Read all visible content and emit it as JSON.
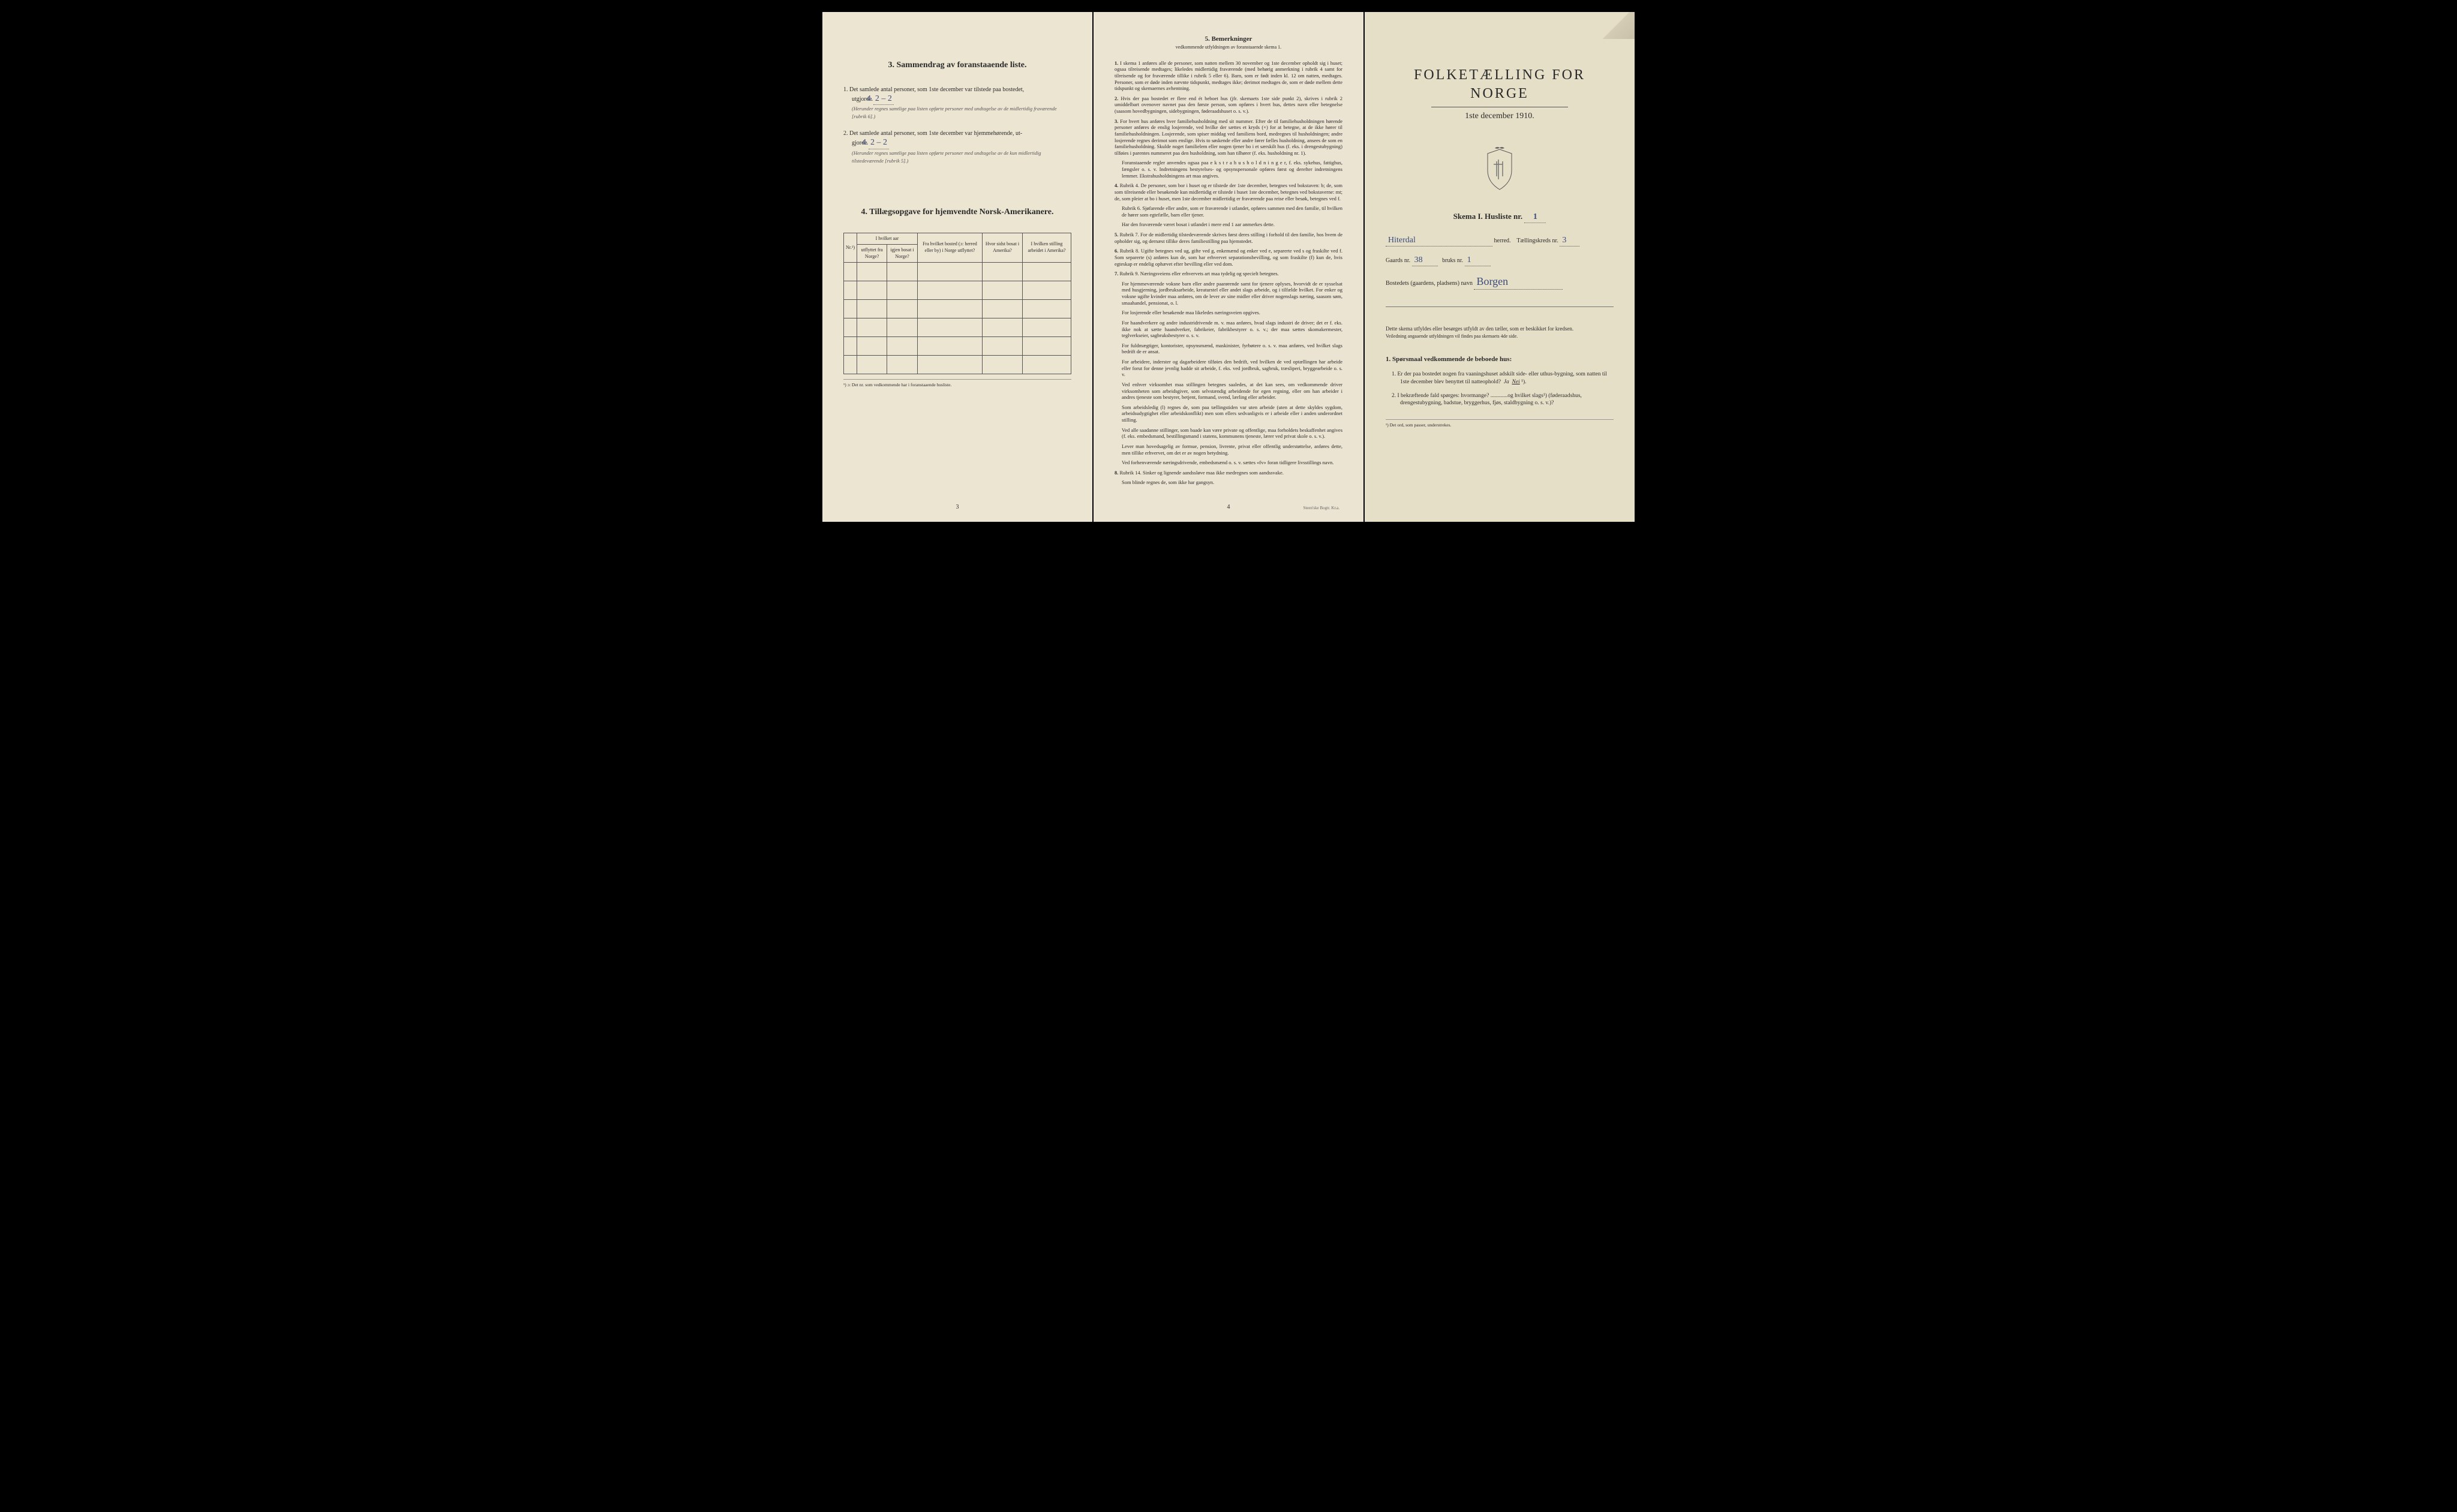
{
  "colors": {
    "page_bg_left": "#ece5d2",
    "page_bg_middle": "#ebe4d2",
    "page_bg_right": "#e6dfc8",
    "text": "#2a2a2a",
    "handwriting": "#3a4a7a",
    "border": "#555555",
    "background": "#000000"
  },
  "page3": {
    "section3_title": "3.   Sammendrag av foranstaaende liste.",
    "item1_lead": "1.  Det samlede antal personer, som 1ste december var tilstede paa bostedet,",
    "item1_utgjorde": "utgjorde",
    "item1_value": "4.     2 – 2",
    "item1_note": "(Herunder regnes samtlige paa listen opførte personer med undtagelse av de midlertidig fraværende [rubrik 6].)",
    "item2_lead": "2.  Det samlede antal personer, som 1ste december var hjemmehørende, ut-",
    "item2_gjorde": "gjorde",
    "item2_value": "4.     2 – 2",
    "item2_note": "(Herunder regnes samtlige paa listen opførte personer med undtagelse av de kun midlertidig tilstedeværende [rubrik 5].)",
    "section4_title": "4.   Tillægsopgave for hjemvendte Norsk-Amerikanere.",
    "table": {
      "col_nr": "Nr.¹)",
      "col_aar_header": "I hvilket aar",
      "col_utflyttet": "utflyttet fra Norge?",
      "col_igjen": "igjen bosat i Norge?",
      "col_fra": "Fra hvilket bosted (ɔ: herred eller by) i Norge utflyttet?",
      "col_hvor": "Hvor sidst bosat i Amerika?",
      "col_stilling": "I hvilken stilling arbeidet i Amerika?",
      "rows": 6
    },
    "footnote": "¹) ɔ: Det nr. som vedkommende har i foranstaaende husliste.",
    "page_num": "3"
  },
  "page4": {
    "title": "5.   Bemerkninger",
    "subtitle": "vedkommende utfyldningen av foranstaaende skema 1.",
    "items": [
      {
        "n": "1.",
        "t": "I skema 1 anføres alle de personer, som natten mellem 30 november og 1ste december opholdt sig i huset; ogsaa tilreisende medtages; likeledes midlertidig fraværende (med behørig anmerkning i rubrik 4 samt for tilreisende og for fraværende tillike i rubrik 5 eller 6). Barn, som er født inden kl. 12 om natten, medtages. Personer, som er døde inden nævnte tidspunkt, medtages ikke; derimot medtages de, som er døde mellem dette tidspunkt og skemaernes avhentning."
      },
      {
        "n": "2.",
        "t": "Hvis der paa bostedet er flere end ét beboet hus (jfr. skemaets 1ste side punkt 2), skrives i rubrik 2 umiddelbart ovenover navnet paa den første person, som opføres i hvert hus, dettes navn eller betegnelse (saasom hovedbygningen, sidebygningen, føderaadshuset o. s. v.)."
      },
      {
        "n": "3.",
        "t": "For hvert hus anføres hver familiehusholdning med sit nummer. Efter de til familiehusholdningen hørende personer anføres de enslig losjerende, ved hvilke der sættes et kryds (×) for at betegne, at de ikke hører til familiehusholdningen. Losjerende, som spiser middag ved familiens bord, medregnes til husholdningen; andre losjerende regnes derimot som enslige. Hvis to søskende eller andre fører fælles husholdning, ansees de som en familiehusholdning. Skulde noget familielem eller nogen tjener bo i et særskilt hus (f. eks. i drengestubygning) tilføies i parentes nummeret paa den husholdning, som han tilhører (f. eks. husholdning nr. 1)."
      },
      {
        "n": "",
        "t": "Foranstaaende regler anvendes ogsaa paa e k s t r a h u s h o l d n i n g e r, f. eks. sykehus, fattighus, fængsler o. s. v.  Indretningens bestyrelses- og opsynspersonale opføres først og derefter indretningens lemmer. Ekstrahusholdningens art maa angives."
      },
      {
        "n": "4.",
        "t": "Rubrik 4.  De personer, som bor i huset og er tilstede der 1ste december, betegnes ved bokstaven: b; de, som som tilreisende eller besøkende kun midlertidig er tilstede i huset 1ste december, betegnes ved bokstaverne: mt; de, som pleier at bo i huset, men 1ste december midlertidig er fraværende paa reise eller besøk, betegnes ved f."
      },
      {
        "n": "",
        "t": "Rubrik 6.  Sjøfarende eller andre, som er fraværende i utlandet, opføres sammen med den familie, til hvilken de hører som egtefælle, barn eller tjener."
      },
      {
        "n": "",
        "t": "Har den fraværende været bosat i utlandet i mere end 1 aar anmerkes dette."
      },
      {
        "n": "5.",
        "t": "Rubrik 7.  For de midlertidig tilstedeværende skrives først deres stilling i forhold til den familie, hos hvem de opholder sig, og dernæst tillike deres familiestilling paa hjemstedet."
      },
      {
        "n": "6.",
        "t": "Rubrik 8.  Ugifte betegnes ved ug, gifte ved g, enkemænd og enker ved e, separerte ved s og fraskilte ved f.  Som separerte (s) anføres kun de, som har erhvervet separationsbevilling, og som fraskilte (f) kun de, hvis egteskap er endelig ophævet efter bevilling eller ved dom."
      },
      {
        "n": "7.",
        "t": "Rubrik 9.  Næringsveiens eller erhvervets art maa tydelig og specielt betegnes."
      },
      {
        "n": "",
        "t": "For hjemmeværende voksne barn eller andre paarørende samt for tjenere oplyses, hvorvidt de er sysselsat med husgjerning, jordbruksarbeide, kreaturstel eller andet slags arbeide, og i tilfælde hvilket. For enker og voksne ugifte kvinder maa anføres, om de lever av sine midler eller driver nogenslags næring, saasom søm, smaahandel, pensionat, o. l."
      },
      {
        "n": "",
        "t": "For losjerende eller besøkende maa likeledes næringsveien opgives."
      },
      {
        "n": "",
        "t": "For haandverkere og andre industridrivende m. v. maa anføres, hvad slags industri de driver; det er f. eks. ikke nok at sætte haandverker, fabrikeier, fabrikbestyrer o. s. v.; der maa sættes skomakermester, teglverkseier, sagbruksbestyrer o. s. v."
      },
      {
        "n": "",
        "t": "For fuldmægtiger, kontorister, opsynsmænd, maskinister, fyrbøtere o. s. v. maa anføres, ved hvilket slags bedrift de er ansat."
      },
      {
        "n": "",
        "t": "For arbeidere, inderster og dagarbeidere tilføies den bedrift, ved hvilken de ved optællingen har arbeide eller forut for denne jevnlig hadde sit arbeide, f. eks. ved jordbruk, sagbruk, træsliperi, bryggearbeide o. s. v."
      },
      {
        "n": "",
        "t": "Ved enhver virksomhet maa stillingen betegnes saaledes, at det kan sees, om vedkommende driver virksomheten som arbeidsgiver, som selvstændig arbeidende for egen regning, eller om han arbeider i andres tjeneste som bestyrer, betjent, formand, svend, lærling eller arbeider."
      },
      {
        "n": "",
        "t": "Som arbeidsledig (l) regnes de, som paa tællingstiden var uten arbeide (uten at dette skyldes sygdom, arbeidsudygtighet eller arbeidskonflikt) men som ellers sedvanligvis er i arbeide eller i anden underordnet stilling."
      },
      {
        "n": "",
        "t": "Ved alle saadanne stillinger, som baade kan være private og offentlige, maa forholdets beskaffenhet angives (f. eks. embedsmand, bestillingsmand i statens, kommunens tjeneste, lærer ved privat skole o. s. v.)."
      },
      {
        "n": "",
        "t": "Lever man hovedsagelig av formue, pension, livrente, privat eller offentlig understøttelse, anføres dette, men tillike erhvervet, om det er av nogen betydning."
      },
      {
        "n": "",
        "t": "Ved forhenværende næringsdrivende, embedsmænd o. s. v. sættes «fv» foran tidligere livsstillings navn."
      },
      {
        "n": "8.",
        "t": "Rubrik 14.  Sinker og lignende aandssløve maa ikke medregnes som aandssvake."
      },
      {
        "n": "",
        "t": "Som blinde regnes de, som ikke har gangsyn."
      }
    ],
    "page_num": "4",
    "printer": "Steen'ske Bogtr.  Kr.a."
  },
  "page1": {
    "main_title": "FOLKETÆLLING FOR NORGE",
    "date": "1ste december 1910.",
    "skema_label": "Skema I.   Husliste nr.",
    "husliste_nr": "1",
    "herred_value": "Hiterdal",
    "herred_label": "herred.",
    "kreds_label": "Tællingskreds nr.",
    "kreds_nr": "3",
    "gaards_label": "Gaards nr.",
    "gaards_nr": "38",
    "bruks_label": "bruks nr.",
    "bruks_nr": "1",
    "bosted_label": "Bostedets (gaardens, pladsens) navn",
    "bosted_value": "Borgen",
    "note1": "Dette skema utfyldes eller besørges utfyldt av den tæller, som er beskikket for kredsen.",
    "note2": "Veiledning angaaende utfyldningen vil findes paa skemaets 4de side.",
    "q_header": "1. Spørsmaal vedkommende de beboede hus:",
    "q1": "1.  Er der paa bostedet nogen fra vaaningshuset adskilt side- eller uthus-bygning, som natten til 1ste december blev benyttet til natteophold?",
    "q1_ja": "Ja",
    "q1_nei": "Nei",
    "q1_sup": "¹).",
    "q2": "2.  I bekræftende fald spørges: hvormange? ............og hvilket slags¹) (føderaadshus, drengestubygning, badstue, bryggerhus, fjøs, staldbygning o. s. v.)?",
    "footnote": "¹) Det ord, som passer, understrekes."
  }
}
